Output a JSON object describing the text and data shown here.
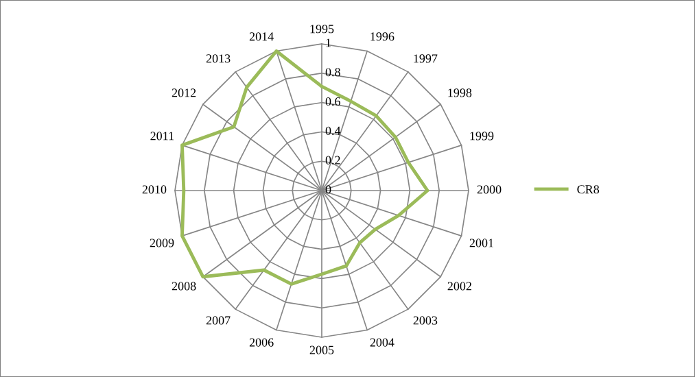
{
  "chart_data": {
    "type": "radar",
    "categories": [
      "1995",
      "1996",
      "1997",
      "1998",
      "1999",
      "2000",
      "2001",
      "2002",
      "2003",
      "2004",
      "2005",
      "2006",
      "2007",
      "2008",
      "2009",
      "2010",
      "2011",
      "2012",
      "2013",
      "2014"
    ],
    "series": [
      {
        "name": "CR8",
        "color": "#9bbb59",
        "values": [
          0.71,
          0.64,
          0.63,
          0.62,
          0.62,
          0.72,
          0.55,
          0.45,
          0.44,
          0.54,
          0.57,
          0.67,
          0.67,
          1.0,
          1.0,
          0.94,
          1.0,
          0.74,
          0.87,
          1.0
        ]
      }
    ],
    "ylim": [
      0,
      1
    ],
    "yticks": [
      0,
      0.2,
      0.4,
      0.6,
      0.8,
      1
    ],
    "legend": "right",
    "marker": "none",
    "line_style": "solid",
    "grid": true
  }
}
